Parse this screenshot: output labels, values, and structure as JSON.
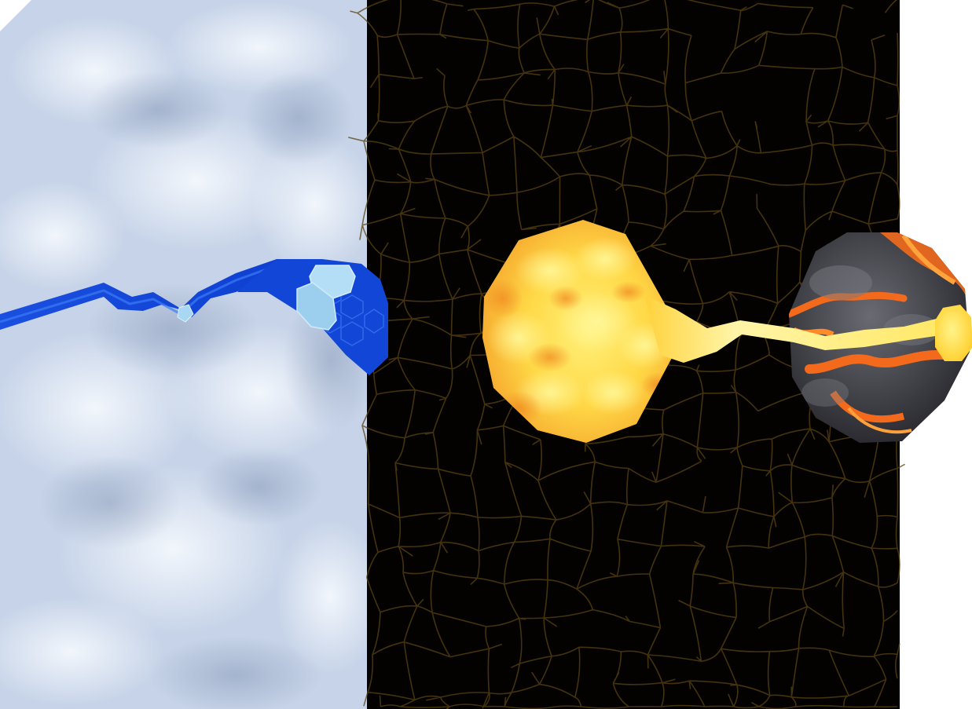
{
  "scene": {
    "regions": [
      {
        "name": "snow-field",
        "kind": "terrain",
        "texture": "snow"
      },
      {
        "name": "cracked-ground",
        "kind": "terrain",
        "texture": "dark-cracked-earth"
      }
    ],
    "features": [
      {
        "name": "water-stream",
        "kind": "river",
        "texture": "water"
      },
      {
        "name": "water-pool",
        "kind": "pool",
        "texture": "water"
      },
      {
        "name": "ice-chunks",
        "kind": "ice"
      },
      {
        "name": "lava-pool",
        "kind": "pool",
        "texture": "molten-lava"
      },
      {
        "name": "lava-stream",
        "kind": "river",
        "texture": "molten-lava"
      },
      {
        "name": "magma-rock",
        "kind": "rock",
        "texture": "cooling-magma"
      },
      {
        "name": "lava-source",
        "kind": "source",
        "texture": "molten-lava"
      }
    ],
    "colors": {
      "snow": "#c9d6ea",
      "snow_highlight": "#f2f6fc",
      "snow_shadow": "#a4b3cc",
      "ground": "#030201",
      "crack": "#5a4311",
      "water": "#1547d6",
      "water_light": "#2f6cf0",
      "ice": "#a8d8f3",
      "lava_core": "#ffe65a",
      "lava_hot": "#ffc93a",
      "lava_edge": "#f6a22a",
      "magma_rock": "#3b3b42",
      "magma_rock_light": "#6d6c73",
      "magma_glow": "#f3681c",
      "background": "#ffffff"
    }
  }
}
